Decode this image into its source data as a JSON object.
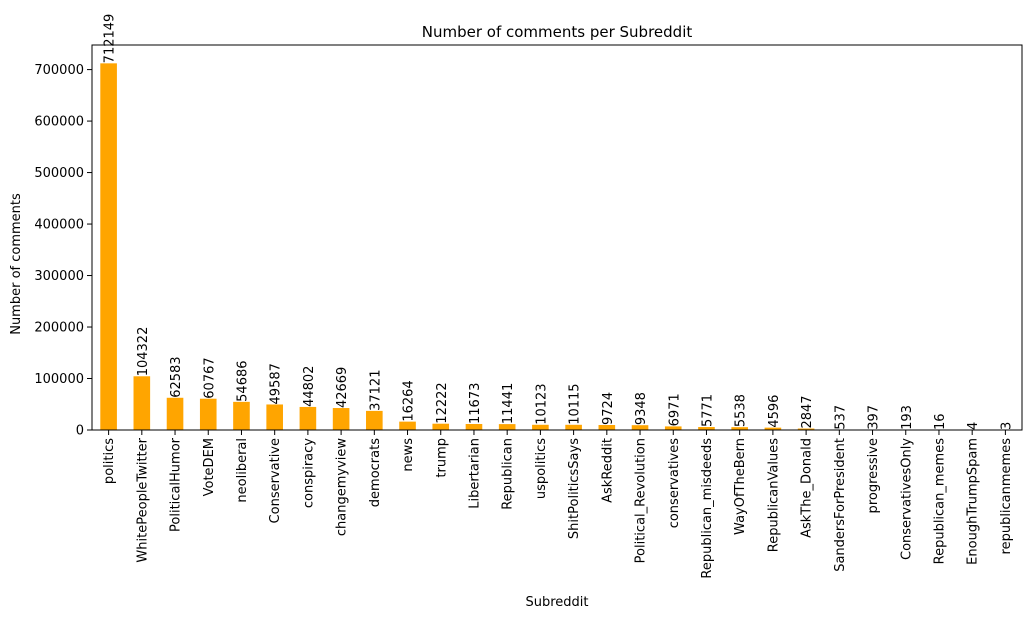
{
  "chart_data": {
    "type": "bar",
    "title": "Number of comments per Subreddit",
    "xlabel": "Subreddit",
    "ylabel": "Number of comments",
    "ylim": [
      0,
      747756
    ],
    "yticks": [
      0,
      100000,
      200000,
      300000,
      400000,
      500000,
      600000,
      700000
    ],
    "bar_color": "#ffa500",
    "grid": false,
    "legend": "none",
    "categories": [
      "politics",
      "WhitePeopleTwitter",
      "PoliticalHumor",
      "VoteDEM",
      "neoliberal",
      "Conservative",
      "conspiracy",
      "changemyview",
      "democrats",
      "news",
      "trump",
      "Libertarian",
      "Republican",
      "uspolitics",
      "ShitPoliticsSays",
      "AskReddit",
      "Political_Revolution",
      "conservatives",
      "Republican_misdeeds",
      "WayOfTheBern",
      "RepublicanValues",
      "AskThe_Donald",
      "SandersForPresident",
      "progressive",
      "ConservativesOnly",
      "Republican_memes",
      "EnoughTrumpSpam",
      "republicanmemes"
    ],
    "values": [
      712149,
      104322,
      62583,
      60767,
      54686,
      49587,
      44802,
      42669,
      37121,
      16264,
      12222,
      11673,
      11441,
      10123,
      10115,
      9724,
      9348,
      6971,
      5771,
      5538,
      4596,
      2847,
      537,
      397,
      193,
      16,
      4,
      3
    ]
  }
}
